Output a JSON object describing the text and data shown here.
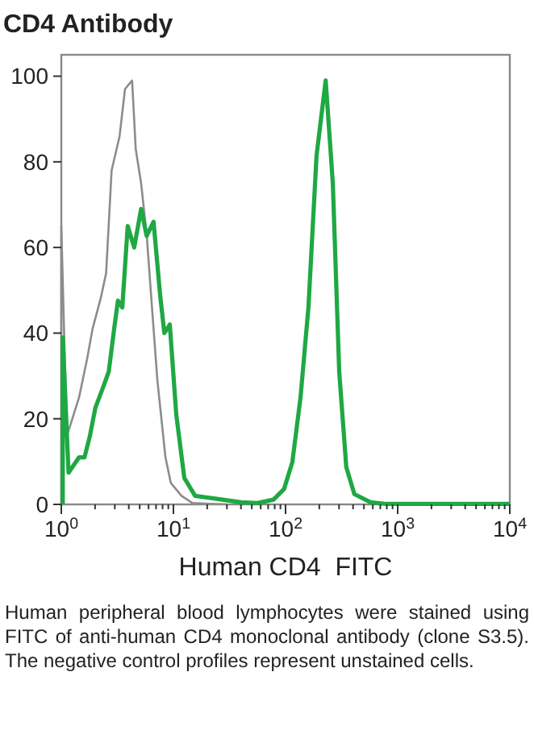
{
  "chart_data": {
    "type": "line",
    "title": "CD4 Antibody",
    "xlabel": "Human CD4  FITC",
    "log": "x",
    "xlim": [
      1,
      10000
    ],
    "ylim": [
      0,
      105
    ],
    "yticks": [
      0,
      20,
      40,
      60,
      80,
      100
    ],
    "xticks": [
      {
        "value": 1,
        "label": "10$^{0}$"
      },
      {
        "value": 2,
        "label": null
      },
      {
        "value": 3,
        "label": null
      },
      {
        "value": 4,
        "label": null
      },
      {
        "value": 5,
        "label": null
      },
      {
        "value": 6,
        "label": null
      },
      {
        "value": 7,
        "label": null
      },
      {
        "value": 8,
        "label": null
      },
      {
        "value": 9,
        "label": null
      },
      {
        "value": 10,
        "label": "10$^{1}$"
      },
      {
        "value": 20,
        "label": null
      },
      {
        "value": 30,
        "label": null
      },
      {
        "value": 40,
        "label": null
      },
      {
        "value": 50,
        "label": null
      },
      {
        "value": 60,
        "label": null
      },
      {
        "value": 70,
        "label": null
      },
      {
        "value": 80,
        "label": null
      },
      {
        "value": 90,
        "label": null
      },
      {
        "value": 100,
        "label": "10$^{2}$"
      },
      {
        "value": 200,
        "label": null
      },
      {
        "value": 300,
        "label": null
      },
      {
        "value": 400,
        "label": null
      },
      {
        "value": 500,
        "label": null
      },
      {
        "value": 600,
        "label": null
      },
      {
        "value": 700,
        "label": null
      },
      {
        "value": 800,
        "label": null
      },
      {
        "value": 900,
        "label": null
      },
      {
        "value": 1000,
        "label": "10$^{3}$"
      },
      {
        "value": 2000,
        "label": null
      },
      {
        "value": 3000,
        "label": null
      },
      {
        "value": 4000,
        "label": null
      },
      {
        "value": 5000,
        "label": null
      },
      {
        "value": 6000,
        "label": null
      },
      {
        "value": 7000,
        "label": null
      },
      {
        "value": 8000,
        "label": null
      },
      {
        "value": 9000,
        "label": null
      },
      {
        "value": 10000,
        "label": "10$^{4}$"
      }
    ],
    "grid": false,
    "marker": "none",
    "series": [
      {
        "color": "#8c8c8c",
        "x": [
          1,
          1,
          1.12,
          1.22,
          1.44,
          1.7,
          1.9,
          2.24,
          2.51,
          2.81,
          3.31,
          3.7,
          4.28,
          4.61,
          5.15,
          5.77,
          6.44,
          7.19,
          8.49,
          9.48,
          11.8,
          14.8,
          30
        ],
        "values": [
          0,
          65,
          16,
          19,
          25,
          34,
          41,
          48,
          54,
          78,
          86,
          97,
          99,
          83,
          75,
          63,
          46,
          29,
          11,
          5,
          2,
          0.3,
          0
        ]
      },
      {
        "color": "#1fa843",
        "x": [
          1.03,
          1.03,
          1.16,
          1.44,
          1.61,
          1.8,
          2.01,
          2.37,
          2.65,
          2.96,
          3.2,
          3.5,
          3.91,
          4.47,
          5.15,
          5.77,
          6.65,
          7.6,
          8.3,
          9.28,
          10.6,
          12.5,
          15.6,
          23,
          40,
          56,
          78,
          97,
          115,
          136,
          160,
          189,
          228,
          264,
          301,
          348,
          411,
          573,
          800,
          10000
        ],
        "values": [
          0,
          39,
          7.4,
          11,
          11,
          16,
          22.5,
          27.5,
          31,
          41,
          47.6,
          46,
          65,
          60,
          69,
          62.7,
          66,
          49,
          40,
          42,
          21,
          6.2,
          2,
          1.4,
          0.5,
          0.3,
          1.1,
          3.6,
          9.9,
          25,
          46,
          81.5,
          99,
          75,
          31,
          8.7,
          2.4,
          0.5,
          0.1,
          0.1
        ]
      }
    ],
    "annotations": [
      "Human peripheral blood lymphocytes were stained using FITC of anti-human CD4 monoclonal antibody (clone S3.5). The negative control profiles represent unstained cells."
    ]
  }
}
